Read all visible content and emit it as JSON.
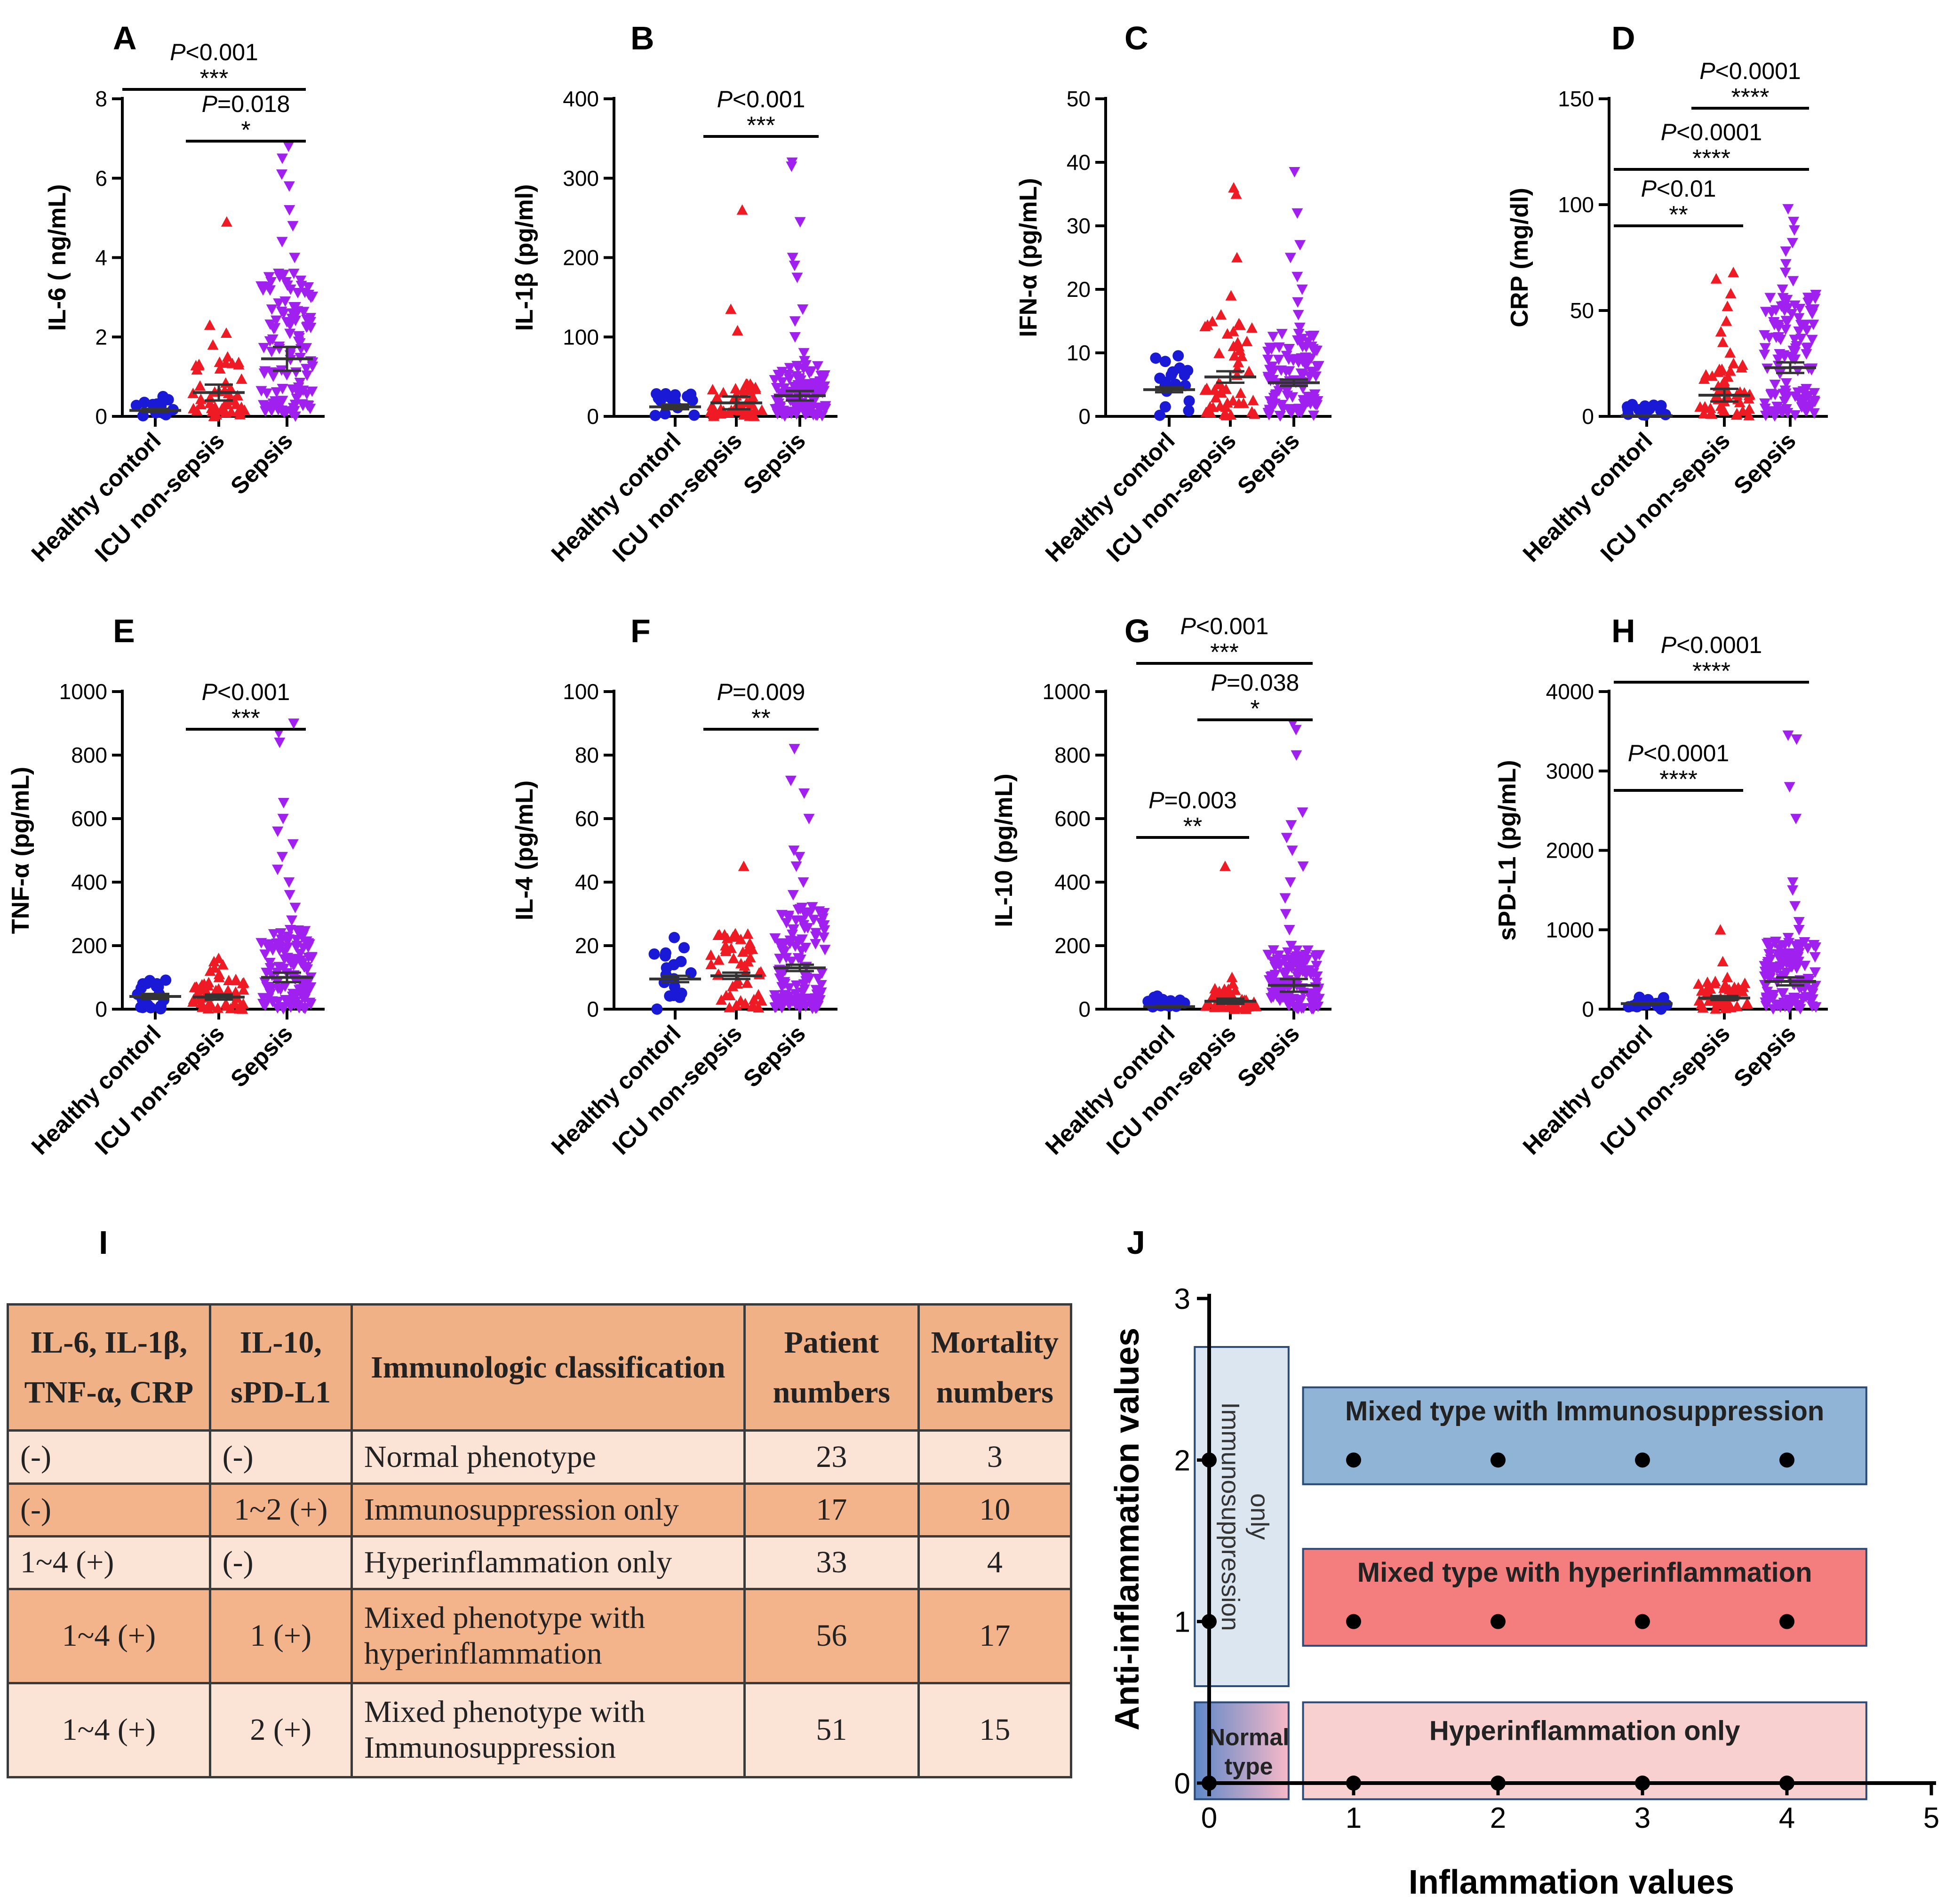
{
  "colors": {
    "healthy": "#1a1ad6",
    "icu": "#ee1b24",
    "sepsis": "#a020f0",
    "table_header": "#f0b187",
    "table_light": "#fbe3d6",
    "table_dark": "#f3b48c",
    "box_immuno": "#dbe6f1",
    "box_mixed_immuno": "#8fb4d6",
    "box_mixed_hyper": "#f47e7e",
    "box_hyper": "#f9d0d0"
  },
  "chart_data": [
    {
      "panel": "A",
      "type": "scatter",
      "ylabel": "IL-6 ( ng/mL)",
      "ylim": [
        0,
        8
      ],
      "yticks": [
        "0",
        "2",
        "4",
        "6",
        "8"
      ],
      "categories": [
        "Healthy contorl",
        "ICU non-sepsis",
        "Sepsis"
      ],
      "series": [
        {
          "name": "Healthy contorl",
          "mean": 0.15,
          "sem": 0.04,
          "outliers": [
            0.5,
            0.4,
            0.3
          ]
        },
        {
          "name": "ICU non-sepsis",
          "mean": 0.6,
          "sem": 0.2,
          "outliers": [
            4.9,
            2.3,
            2.1,
            1.8,
            1.5,
            1.2
          ]
        },
        {
          "name": "Sepsis",
          "mean": 1.45,
          "sem": 0.3,
          "outliers": [
            6.8,
            6.5,
            6.1,
            5.8,
            5.2,
            4.8,
            4.4,
            4.0,
            3.6,
            3.2,
            2.9,
            2.6,
            2.3
          ]
        }
      ],
      "comparisons": [
        {
          "from": 0,
          "to": 2,
          "p": "<0.001",
          "stars": "***"
        },
        {
          "from": 1,
          "to": 2,
          "p": "=0.018",
          "stars": "*"
        }
      ]
    },
    {
      "panel": "B",
      "type": "scatter",
      "ylabel": "IL-1β (pg/ml)",
      "ylim": [
        0,
        400
      ],
      "yticks": [
        "0",
        "100",
        "200",
        "300",
        "400"
      ],
      "categories": [
        "Healthy contorl",
        "ICU non-sepsis",
        "Sepsis"
      ],
      "series": [
        {
          "name": "Healthy contorl",
          "mean": 12,
          "sem": 3,
          "outliers": [
            25,
            22,
            20
          ]
        },
        {
          "name": "ICU non-sepsis",
          "mean": 17,
          "sem": 8,
          "outliers": [
            260,
            135,
            108,
            35
          ]
        },
        {
          "name": "Sepsis",
          "mean": 26,
          "sem": 6,
          "outliers": [
            320,
            315,
            245,
            200,
            190,
            175,
            135,
            120,
            100,
            80,
            70
          ]
        }
      ],
      "comparisons": [
        {
          "from": 1,
          "to": 2,
          "p": "<0.001",
          "stars": "***"
        }
      ]
    },
    {
      "panel": "C",
      "type": "scatter",
      "ylabel": "IFN-α  (pg/mL)",
      "ylim": [
        0,
        50
      ],
      "yticks": [
        "0",
        "10",
        "20",
        "30",
        "40",
        "50"
      ],
      "categories": [
        "Healthy contorl",
        "ICU non-sepsis",
        "Sepsis"
      ],
      "series": [
        {
          "name": "Healthy contorl",
          "mean": 4.2,
          "sem": 0.4,
          "outliers": [
            7,
            6.5,
            6,
            1.5
          ]
        },
        {
          "name": "ICU non-sepsis",
          "mean": 6.2,
          "sem": 0.9,
          "outliers": [
            36,
            35,
            25,
            19,
            16,
            13,
            11
          ]
        },
        {
          "name": "Sepsis",
          "mean": 5.3,
          "sem": 0.5,
          "outliers": [
            38.5,
            32,
            27,
            25,
            22,
            20,
            18,
            16,
            14,
            12
          ]
        }
      ],
      "comparisons": []
    },
    {
      "panel": "D",
      "type": "scatter",
      "ylabel": "CRP (mg/dl)",
      "ylim": [
        0,
        150
      ],
      "yticks": [
        "0",
        "50",
        "100",
        "150"
      ],
      "categories": [
        "Healthy contorl",
        "ICU non-sepsis",
        "Sepsis"
      ],
      "series": [
        {
          "name": "Healthy contorl",
          "mean": 0.3,
          "sem": 0.1,
          "outliers": []
        },
        {
          "name": "ICU non-sepsis",
          "mean": 10,
          "sem": 3,
          "outliers": [
            68,
            65,
            58,
            52,
            45,
            40,
            35,
            30,
            25
          ]
        },
        {
          "name": "Sepsis",
          "mean": 23,
          "sem": 2.5,
          "outliers": [
            98,
            92,
            88,
            82,
            78,
            72,
            68,
            64,
            60,
            56,
            52
          ]
        }
      ],
      "comparisons": [
        {
          "from": 0,
          "to": 1,
          "p": "<0.01",
          "stars": "**"
        },
        {
          "from": 0,
          "to": 2,
          "p": "<0.0001",
          "stars": "****"
        },
        {
          "from": 1,
          "to": 2,
          "p": "<0.0001",
          "stars": "****"
        }
      ]
    },
    {
      "panel": "E",
      "type": "scatter",
      "ylabel": "TNF-α  (pg/mL)",
      "ylim": [
        0,
        1000
      ],
      "yticks": [
        "0",
        "200",
        "400",
        "600",
        "800",
        "1000"
      ],
      "categories": [
        "Healthy contorl",
        "ICU non-sepsis",
        "Sepsis"
      ],
      "series": [
        {
          "name": "Healthy contorl",
          "mean": 40,
          "sem": 8,
          "outliers": [
            90,
            80,
            70,
            10
          ]
        },
        {
          "name": "ICU non-sepsis",
          "mean": 38,
          "sem": 8,
          "outliers": [
            160,
            150,
            140,
            130,
            120,
            110,
            100
          ]
        },
        {
          "name": "Sepsis",
          "mean": 100,
          "sem": 15,
          "outliers": [
            900,
            870,
            840,
            650,
            600,
            560,
            520,
            480,
            440,
            400,
            360,
            320,
            280,
            250,
            220
          ]
        }
      ],
      "comparisons": [
        {
          "from": 1,
          "to": 2,
          "p": "<0.001",
          "stars": "***"
        }
      ]
    },
    {
      "panel": "F",
      "type": "scatter",
      "ylabel": "IL-4 (pg/mL)",
      "ylim": [
        0,
        100
      ],
      "yticks": [
        "0",
        "20",
        "40",
        "60",
        "80",
        "100"
      ],
      "categories": [
        "Healthy contorl",
        "ICU non-sepsis",
        "Sepsis"
      ],
      "series": [
        {
          "name": "Healthy contorl",
          "mean": 9.5,
          "sem": 1,
          "outliers": [
            15,
            14,
            13,
            5
          ]
        },
        {
          "name": "ICU non-sepsis",
          "mean": 10.5,
          "sem": 1,
          "outliers": [
            45,
            22,
            18,
            16
          ]
        },
        {
          "name": "Sepsis",
          "mean": 13,
          "sem": 1,
          "outliers": [
            82,
            72,
            68,
            60,
            50,
            48,
            45,
            40,
            36,
            32,
            28,
            25,
            22
          ]
        }
      ],
      "comparisons": [
        {
          "from": 1,
          "to": 2,
          "p": "=0.009",
          "stars": "**"
        }
      ]
    },
    {
      "panel": "G",
      "type": "scatter",
      "ylabel": "IL-10 (pg/mL)",
      "ylim": [
        0,
        1000
      ],
      "yticks": [
        "0",
        "200",
        "400",
        "600",
        "800",
        "1000"
      ],
      "categories": [
        "Healthy contorl",
        "ICU non-sepsis",
        "Sepsis"
      ],
      "series": [
        {
          "name": "Healthy contorl",
          "mean": 8,
          "sem": 2,
          "outliers": [
            20,
            15
          ]
        },
        {
          "name": "ICU non-sepsis",
          "mean": 25,
          "sem": 8,
          "outliers": [
            450,
            100,
            80,
            60
          ]
        },
        {
          "name": "Sepsis",
          "mean": 75,
          "sem": 20,
          "outliers": [
            900,
            880,
            800,
            620,
            580,
            540,
            500,
            450,
            400,
            350,
            300,
            250,
            200,
            150
          ]
        }
      ],
      "comparisons": [
        {
          "from": 0,
          "to": 1,
          "p": "=0.003",
          "stars": "**"
        },
        {
          "from": 0,
          "to": 2,
          "p": "<0.001",
          "stars": "***"
        },
        {
          "from": 1,
          "to": 2,
          "p": "=0.038",
          "stars": "*"
        }
      ]
    },
    {
      "panel": "H",
      "type": "scatter",
      "ylabel": "sPD-L1 (pg/mL)",
      "ylim": [
        0,
        4000
      ],
      "yticks": [
        "0",
        "1000",
        "2000",
        "3000",
        "4000"
      ],
      "categories": [
        "Healthy contorl",
        "ICU non-sepsis",
        "Sepsis"
      ],
      "series": [
        {
          "name": "Healthy contorl",
          "mean": 70,
          "sem": 10,
          "outliers": [
            150,
            120
          ]
        },
        {
          "name": "ICU non-sepsis",
          "mean": 140,
          "sem": 25,
          "outliers": [
            1000,
            600,
            400,
            300
          ]
        },
        {
          "name": "Sepsis",
          "mean": 350,
          "sem": 50,
          "outliers": [
            3450,
            3400,
            2800,
            2400,
            1600,
            1500,
            1300,
            1100,
            1000,
            900,
            800,
            700,
            600
          ]
        }
      ],
      "comparisons": [
        {
          "from": 0,
          "to": 1,
          "p": "<0.0001",
          "stars": "****"
        },
        {
          "from": 0,
          "to": 2,
          "p": "<0.0001",
          "stars": "****"
        }
      ]
    },
    {
      "panel": "J",
      "type": "scatter",
      "xlabel": "Inflammation values",
      "ylabel": "Anti-inflammation values",
      "xlim": [
        0,
        5
      ],
      "ylim": [
        0,
        3
      ],
      "xticks": [
        "0",
        "1",
        "2",
        "3",
        "4",
        "5"
      ],
      "yticks": [
        "0",
        "1",
        "2",
        "3"
      ],
      "points": [
        {
          "x": 0,
          "y": 0
        },
        {
          "x": 0,
          "y": 1
        },
        {
          "x": 0,
          "y": 2
        },
        {
          "x": 1,
          "y": 0
        },
        {
          "x": 2,
          "y": 0
        },
        {
          "x": 3,
          "y": 0
        },
        {
          "x": 4,
          "y": 0
        },
        {
          "x": 1,
          "y": 1
        },
        {
          "x": 2,
          "y": 1
        },
        {
          "x": 3,
          "y": 1
        },
        {
          "x": 4,
          "y": 1
        },
        {
          "x": 1,
          "y": 2
        },
        {
          "x": 2,
          "y": 2
        },
        {
          "x": 3,
          "y": 2
        },
        {
          "x": 4,
          "y": 2
        }
      ],
      "regions": [
        {
          "label": "only Immunosuppression",
          "x": [
            -0.1,
            0.55
          ],
          "y": [
            0.6,
            2.7
          ]
        },
        {
          "label": "Mixed type with Immunosuppression",
          "x": [
            0.65,
            4.55
          ],
          "y": [
            1.85,
            2.45
          ]
        },
        {
          "label": "Mixed type with hyperinflammation",
          "x": [
            0.65,
            4.55
          ],
          "y": [
            0.85,
            1.45
          ]
        },
        {
          "label": "Normal type",
          "x": [
            -0.1,
            0.55
          ],
          "y": [
            -0.1,
            0.5
          ]
        },
        {
          "label": "Hyperinflammation only",
          "x": [
            0.65,
            4.55
          ],
          "y": [
            -0.1,
            0.5
          ]
        }
      ]
    }
  ],
  "panel_I": {
    "label": "I",
    "headers": [
      "IL-6, IL-1β, TNF-α, CRP",
      "IL-10, sPD-L1",
      "Immunologic classification",
      "Patient numbers",
      "Mortality numbers"
    ],
    "rows": [
      [
        "(-)",
        "(-)",
        "Normal phenotype",
        "23",
        "3"
      ],
      [
        "(-)",
        "1~2 (+)",
        "Immunosuppression only",
        "17",
        "10"
      ],
      [
        "1~4 (+)",
        "(-)",
        "Hyperinflammation only",
        "33",
        "4"
      ],
      [
        "1~4 (+)",
        "1 (+)",
        "Mixed phenotype with hyperinflammation",
        "56",
        "17"
      ],
      [
        "1~4 (+)",
        "2 (+)",
        "Mixed phenotype with Immunosuppression",
        "51",
        "15"
      ]
    ]
  }
}
